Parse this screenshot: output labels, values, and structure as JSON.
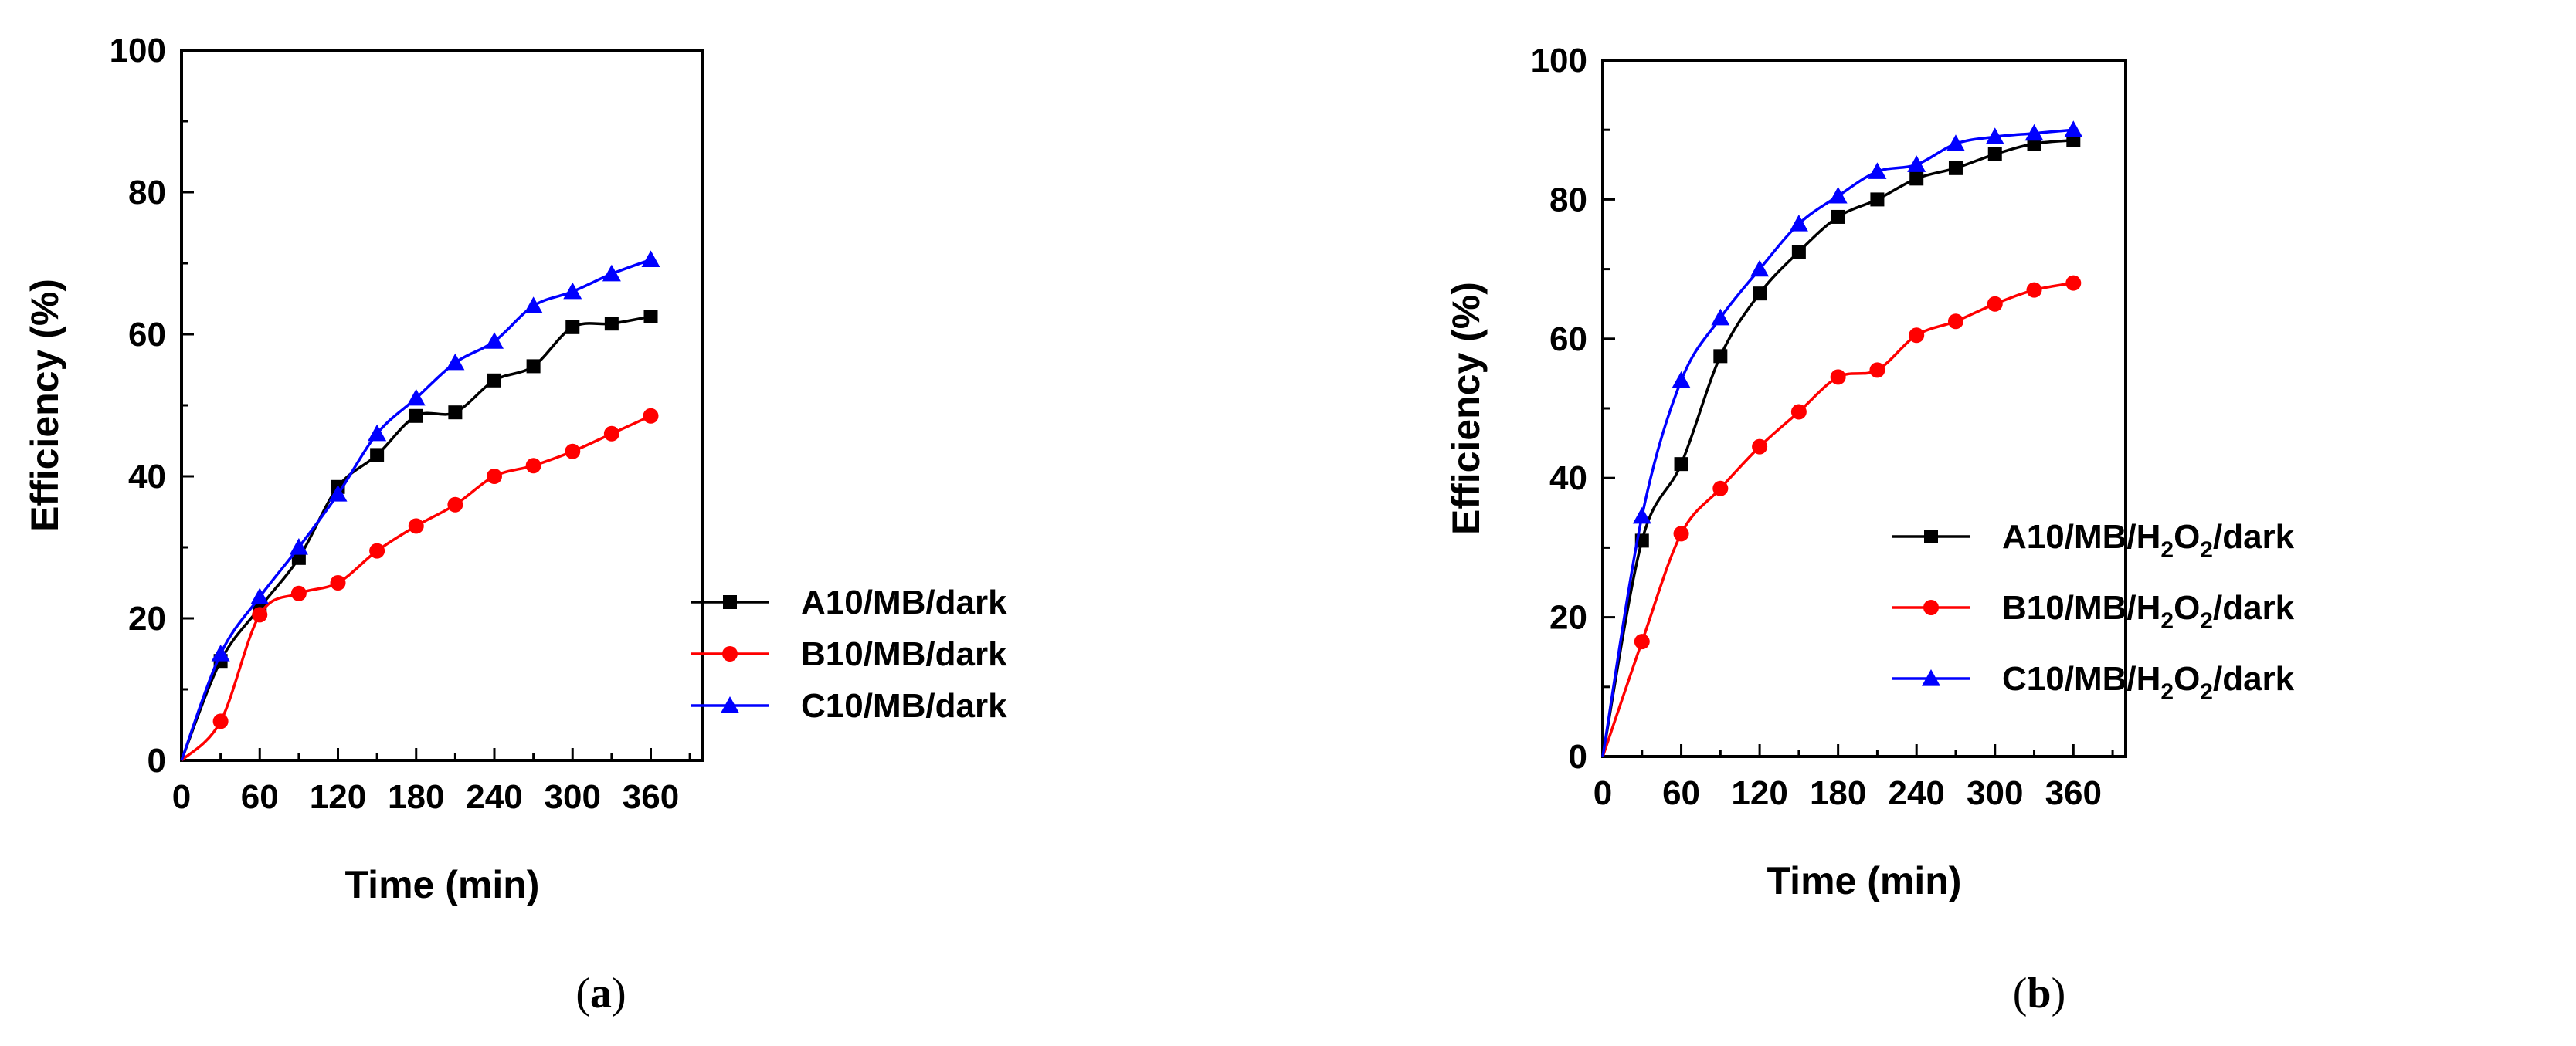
{
  "chart_data": [
    {
      "type": "line",
      "panel_label": "a",
      "xlabel": "Time (min)",
      "ylabel": "Efficiency (%)",
      "xlim": [
        0,
        400
      ],
      "ylim": [
        0,
        100
      ],
      "xticks": [
        0,
        60,
        120,
        180,
        240,
        300,
        360
      ],
      "yticks": [
        0,
        20,
        40,
        60,
        80,
        100
      ],
      "legend_position": "bottom-right",
      "series": [
        {
          "name": "A10/MB/dark",
          "name_parts": [
            "A10/MB/dark"
          ],
          "color": "#000000",
          "marker": "square",
          "x": [
            0,
            30,
            60,
            90,
            120,
            150,
            180,
            210,
            240,
            270,
            300,
            330,
            360
          ],
          "y": [
            0,
            14,
            21.5,
            28.5,
            38.5,
            43,
            48.5,
            49,
            53.5,
            55.5,
            61,
            61.5,
            62.5
          ]
        },
        {
          "name": "B10/MB/dark",
          "name_parts": [
            "B10/MB/dark"
          ],
          "color": "#ff0000",
          "marker": "circle",
          "x": [
            0,
            30,
            60,
            90,
            120,
            150,
            180,
            210,
            240,
            270,
            300,
            330,
            360
          ],
          "y": [
            0,
            5.5,
            20.5,
            23.5,
            25,
            29.5,
            33,
            36,
            40,
            41.5,
            43.5,
            46,
            48.5
          ]
        },
        {
          "name": "C10/MB/dark",
          "name_parts": [
            "C10/MB/dark"
          ],
          "color": "#0000ff",
          "marker": "triangle",
          "x": [
            0,
            30,
            60,
            90,
            120,
            150,
            180,
            210,
            240,
            270,
            300,
            330,
            360
          ],
          "y": [
            0,
            15,
            23,
            30,
            37.5,
            46,
            51,
            56,
            59,
            64,
            66,
            68.5,
            70.5
          ]
        }
      ]
    },
    {
      "type": "line",
      "panel_label": "b",
      "xlabel": "Time (min)",
      "ylabel": "Efficiency (%)",
      "xlim": [
        0,
        400
      ],
      "ylim": [
        0,
        100
      ],
      "xticks": [
        0,
        60,
        120,
        180,
        240,
        300,
        360
      ],
      "yticks": [
        0,
        20,
        40,
        60,
        80,
        100
      ],
      "legend_position": "bottom-right",
      "series": [
        {
          "name": "A10/MB/H2O2/dark",
          "name_parts": [
            "A10/MB/H",
            "2",
            "O",
            "2",
            "/dark"
          ],
          "color": "#000000",
          "marker": "square",
          "x": [
            0,
            30,
            60,
            90,
            120,
            150,
            180,
            210,
            240,
            270,
            300,
            330,
            360
          ],
          "y": [
            0,
            31,
            42,
            57.5,
            66.5,
            72.5,
            77.5,
            80,
            83,
            84.5,
            86.5,
            88,
            88.5
          ]
        },
        {
          "name": "B10/MB/H2O2/dark",
          "name_parts": [
            "B10/MB/H",
            "2",
            "O",
            "2",
            "/dark"
          ],
          "color": "#ff0000",
          "marker": "circle",
          "x": [
            0,
            30,
            60,
            90,
            120,
            150,
            180,
            210,
            240,
            270,
            300,
            330,
            360
          ],
          "y": [
            0,
            16.5,
            32,
            38.5,
            44.5,
            49.5,
            54.5,
            55.5,
            60.5,
            62.5,
            65,
            67,
            68
          ]
        },
        {
          "name": "C10/MB/H2O2/dark",
          "name_parts": [
            "C10/MB/H",
            "2",
            "O",
            "2",
            "/dark"
          ],
          "color": "#0000ff",
          "marker": "triangle",
          "x": [
            0,
            30,
            60,
            90,
            120,
            150,
            180,
            210,
            240,
            270,
            300,
            330,
            360
          ],
          "y": [
            0,
            34.5,
            54,
            63,
            70,
            76.5,
            80.5,
            84,
            85,
            88,
            89,
            89.5,
            90
          ]
        }
      ]
    }
  ]
}
